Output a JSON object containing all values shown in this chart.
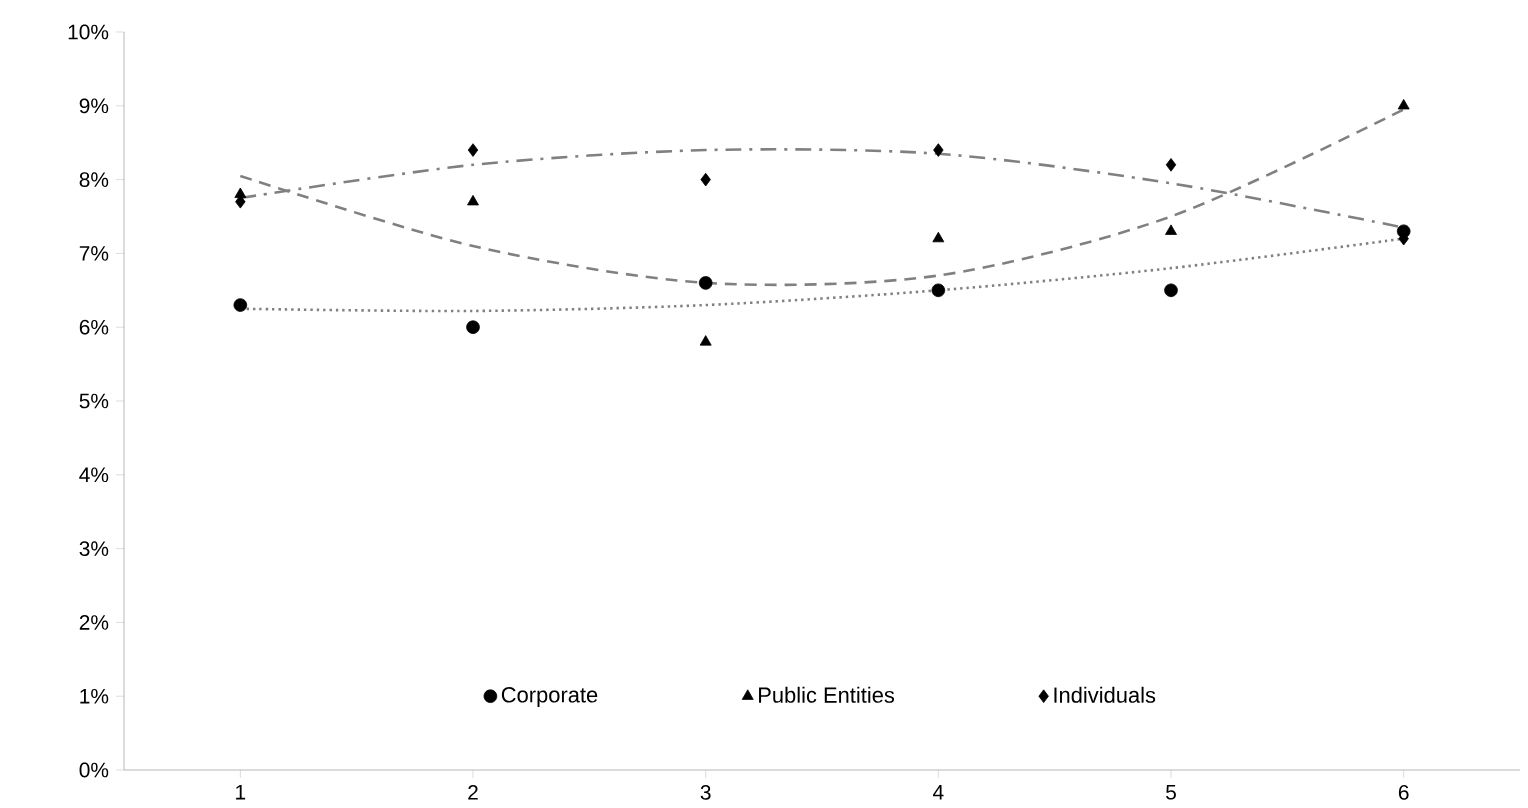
{
  "chart_data": {
    "type": "scatter",
    "x": [
      1,
      2,
      3,
      4,
      5,
      6
    ],
    "series": [
      {
        "name": "Corporate",
        "color": "#000000",
        "marker": "circle",
        "values": [
          6.3,
          6.0,
          6.6,
          6.5,
          6.5,
          7.3
        ]
      },
      {
        "name": "Public Entities",
        "color": "#000000",
        "marker": "triangle",
        "values": [
          7.8,
          7.7,
          5.8,
          7.2,
          7.3,
          9.0
        ]
      },
      {
        "name": "Individuals",
        "color": "#000000",
        "marker": "diamond",
        "values": [
          7.7,
          8.4,
          8.0,
          8.4,
          8.2,
          7.2
        ]
      },
      {
        "type": "line",
        "color": "#808080",
        "line_style": "dotted",
        "marker": "none",
        "x": [
          1,
          2,
          3,
          4,
          5,
          6
        ],
        "values": [
          6.25,
          6.22,
          6.3,
          6.5,
          6.8,
          7.2
        ]
      },
      {
        "type": "line",
        "color": "#808080",
        "line_style": "dashed",
        "marker": "none",
        "x": [
          1,
          2,
          3,
          4,
          5,
          6
        ],
        "values": [
          8.05,
          7.1,
          6.6,
          6.7,
          7.5,
          8.95
        ]
      },
      {
        "type": "line",
        "color": "#808080",
        "line_style": "dashdot",
        "marker": "none",
        "x": [
          1,
          2,
          3,
          4,
          5,
          6
        ],
        "values": [
          7.75,
          8.2,
          8.4,
          8.35,
          7.95,
          7.35
        ]
      }
    ],
    "xlim": [
      0.5,
      6.5
    ],
    "xticks": [
      1,
      2,
      3,
      4,
      5,
      6
    ],
    "ylim": [
      0,
      10
    ],
    "yticks": [
      {
        "value": 0,
        "label": "0%"
      },
      {
        "value": 1,
        "label": "1%"
      },
      {
        "value": 2,
        "label": "2%"
      },
      {
        "value": 3,
        "label": "3%"
      },
      {
        "value": 4,
        "label": "4%"
      },
      {
        "value": 5,
        "label": "5%"
      },
      {
        "value": 6,
        "label": "6%"
      },
      {
        "value": 7,
        "label": "7%"
      },
      {
        "value": 8,
        "label": "8%"
      },
      {
        "value": 9,
        "label": "9%"
      },
      {
        "value": 10,
        "label": "10%"
      }
    ],
    "grid": false,
    "legend": "bottom"
  }
}
